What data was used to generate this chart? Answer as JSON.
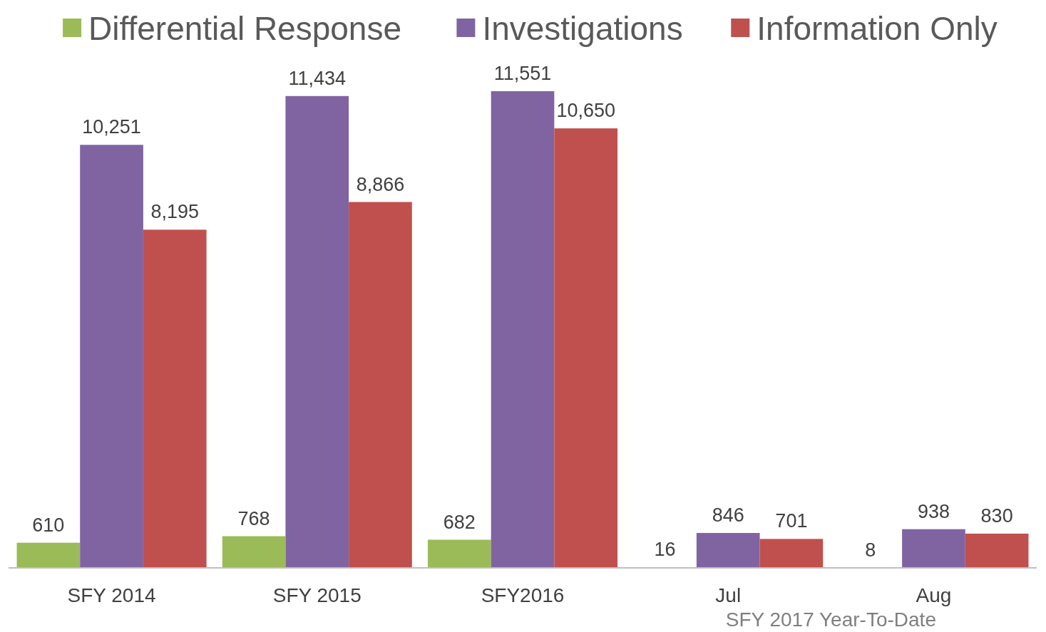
{
  "chart_data": {
    "type": "bar",
    "categories": [
      "SFY 2014",
      "SFY 2015",
      "SFY2016",
      "Jul",
      "Aug"
    ],
    "series": [
      {
        "name": "Differential Response",
        "color": "#9bbb59",
        "values": [
          610,
          768,
          682,
          16,
          8
        ],
        "value_labels": [
          "610",
          "768",
          "682",
          "16",
          "8"
        ]
      },
      {
        "name": "Investigations",
        "color": "#8064a2",
        "values": [
          10251,
          11434,
          11551,
          846,
          938
        ],
        "value_labels": [
          "10,251",
          "11,434",
          "11,551",
          "846",
          "938"
        ]
      },
      {
        "name": "Information Only",
        "color": "#c0504d",
        "values": [
          8195,
          8866,
          10650,
          701,
          830
        ],
        "value_labels": [
          "8,195",
          "8,866",
          "10,650",
          "701",
          "830"
        ]
      }
    ],
    "legend": "top right",
    "annotations": [
      "SFY 2017 Year-To-Date"
    ]
  }
}
